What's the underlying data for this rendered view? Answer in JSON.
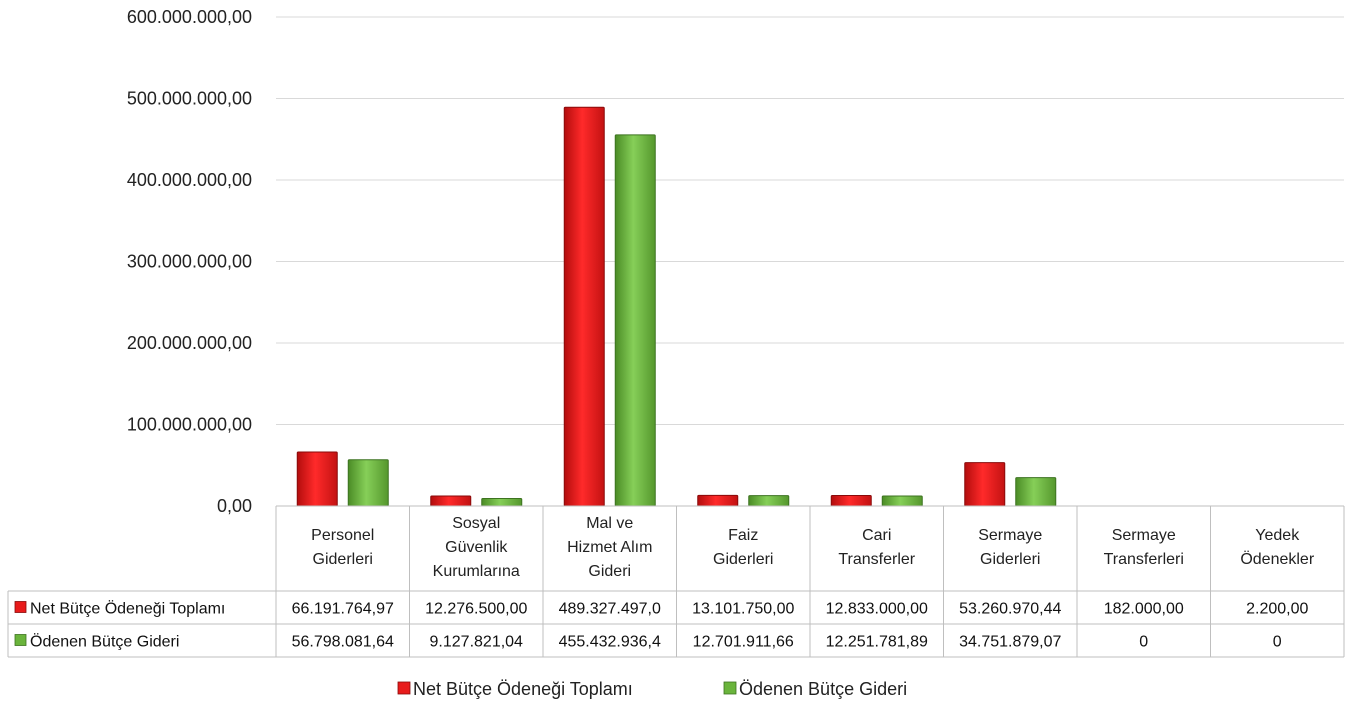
{
  "chart_data": {
    "type": "bar",
    "categories": [
      [
        "Personel",
        "Giderleri"
      ],
      [
        "Sosyal",
        "Güvenlik",
        "Kurumlarına"
      ],
      [
        "Mal ve",
        "Hizmet Alım",
        "Gideri"
      ],
      [
        "Faiz",
        "Giderleri"
      ],
      [
        "Cari",
        "Transferler"
      ],
      [
        "Sermaye",
        "Giderleri"
      ],
      [
        "Sermaye",
        "Transferleri"
      ],
      [
        "Yedek",
        "Ödenekler"
      ]
    ],
    "series": [
      {
        "name": "Net Bütçe Ödeneği Toplamı",
        "color": "#e81b1b",
        "values": [
          66191764.97,
          12276500.0,
          489327497.0,
          13101750.0,
          12833000.0,
          53260970.44,
          182000.0,
          2200.0
        ],
        "labels": [
          "66.191.764,97",
          "12.276.500,00",
          "489.327.497,0",
          "13.101.750,00",
          "12.833.000,00",
          "53.260.970,44",
          "182.000,00",
          "2.200,00"
        ]
      },
      {
        "name": "Ödenen Bütçe Gideri",
        "color": "#6ab43c",
        "values": [
          56798081.64,
          9127821.04,
          455432936.4,
          12701911.66,
          12251781.89,
          34751879.07,
          0,
          0
        ],
        "labels": [
          "56.798.081,64",
          "9.127.821,04",
          "455.432.936,4",
          "12.701.911,66",
          "12.251.781,89",
          "34.751.879,07",
          "0",
          "0"
        ]
      }
    ],
    "ylim": [
      0,
      600000000
    ],
    "yticks": [
      0,
      100000000,
      200000000,
      300000000,
      400000000,
      500000000,
      600000000
    ],
    "ytick_labels": [
      "0,00",
      "100.000.000,00",
      "200.000.000,00",
      "300.000.000,00",
      "400.000.000,00",
      "500.000.000,00",
      "600.000.000,00"
    ],
    "grid": true,
    "legend_position": "bottom",
    "data_table": true
  }
}
